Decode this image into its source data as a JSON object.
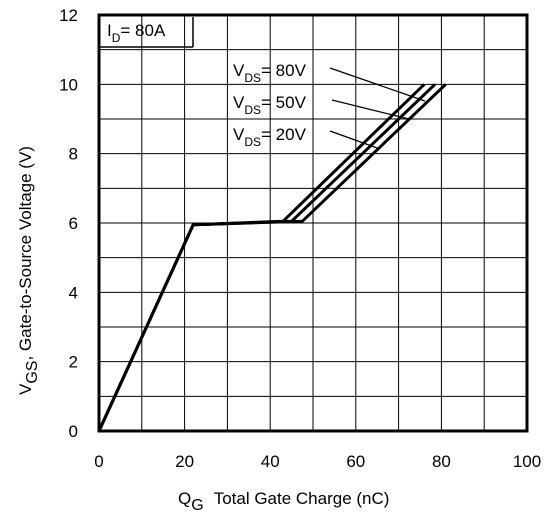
{
  "chart_data": {
    "type": "line",
    "xlabel": {
      "main": "Q",
      "sub": "G",
      "rest": "Total Gate Charge (nC)"
    },
    "ylabel": {
      "main": "V",
      "sub": "GS",
      "rest": ", Gate-to-Source Voltage (V)"
    },
    "xlim": [
      0,
      100
    ],
    "ylim": [
      0,
      12
    ],
    "xticks": [
      0,
      20,
      40,
      60,
      80,
      100
    ],
    "yticks": [
      0,
      2,
      4,
      6,
      8,
      10,
      12
    ],
    "x_minor_step": 10,
    "y_minor_step": 1,
    "grid": true,
    "condition": {
      "main": "I",
      "sub": "D",
      "rest": "= 80A"
    },
    "series": [
      {
        "name": "V_DS = 80V",
        "label_main": "V",
        "label_sub": "DS",
        "label_rest": "= 80V",
        "x": [
          0,
          22,
          43,
          76
        ],
        "y": [
          0,
          5.95,
          6.05,
          10.0
        ]
      },
      {
        "name": "V_DS = 50V",
        "label_main": "V",
        "label_sub": "DS",
        "label_rest": "= 50V",
        "x": [
          0,
          22,
          45,
          78.5
        ],
        "y": [
          0,
          5.95,
          6.05,
          10.0
        ]
      },
      {
        "name": "V_DS = 20V",
        "label_main": "V",
        "label_sub": "DS",
        "label_rest": "= 20V",
        "x": [
          0,
          22,
          47.5,
          81
        ],
        "y": [
          0,
          5.95,
          6.05,
          10.0
        ]
      }
    ]
  }
}
